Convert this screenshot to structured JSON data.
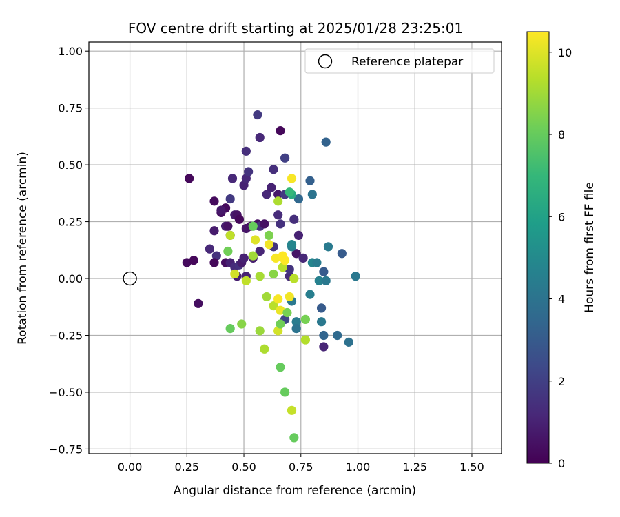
{
  "chart_data": {
    "type": "scatter",
    "title": "FOV centre drift starting at 2025/01/28 23:25:01",
    "xlabel": "Angular distance from reference (arcmin)",
    "ylabel": "Rotation from reference (arcmin)",
    "xlim": [
      -0.18,
      1.63
    ],
    "ylim": [
      -0.77,
      1.04
    ],
    "xticks": [
      0.0,
      0.25,
      0.5,
      0.75,
      1.0,
      1.25,
      1.5
    ],
    "xtick_labels": [
      "0.00",
      "0.25",
      "0.50",
      "0.75",
      "1.00",
      "1.25",
      "1.50"
    ],
    "yticks": [
      -0.75,
      -0.5,
      -0.25,
      0.0,
      0.25,
      0.5,
      0.75,
      1.0
    ],
    "ytick_labels": [
      "−0.75",
      "−0.50",
      "−0.25",
      "0.00",
      "0.25",
      "0.50",
      "0.75",
      "1.00"
    ],
    "grid": true,
    "legend": {
      "position": "top-right",
      "entries": [
        "Reference platepar"
      ]
    },
    "reference_point": {
      "x": 0.0,
      "y": 0.0,
      "marker": "open-circle"
    },
    "colorbar": {
      "label": "Hours from first FF file",
      "range": [
        0,
        10.5
      ],
      "ticks": [
        0,
        2,
        4,
        6,
        8,
        10
      ],
      "tick_labels": [
        "0",
        "2",
        "4",
        "6",
        "8",
        "10"
      ],
      "colormap": "viridis",
      "colors": [
        "#440154",
        "#482878",
        "#3e4989",
        "#31688e",
        "#26828e",
        "#1f9e89",
        "#35b779",
        "#6ece58",
        "#b5de2b",
        "#fde725"
      ]
    },
    "points": [
      {
        "x": 0.26,
        "y": 0.44,
        "h": 0.2
      },
      {
        "x": 0.25,
        "y": 0.07,
        "h": 0.3
      },
      {
        "x": 0.28,
        "y": 0.08,
        "h": 0.2
      },
      {
        "x": 0.3,
        "y": -0.11,
        "h": 0.4
      },
      {
        "x": 0.35,
        "y": 0.13,
        "h": 1.2
      },
      {
        "x": 0.37,
        "y": 0.21,
        "h": 0.8
      },
      {
        "x": 0.37,
        "y": 0.34,
        "h": 0.3
      },
      {
        "x": 0.38,
        "y": 0.1,
        "h": 1.5
      },
      {
        "x": 0.37,
        "y": 0.07,
        "h": 0.2
      },
      {
        "x": 0.4,
        "y": 0.29,
        "h": 0.4
      },
      {
        "x": 0.42,
        "y": 0.31,
        "h": 0.3
      },
      {
        "x": 0.42,
        "y": 0.23,
        "h": 0.9
      },
      {
        "x": 0.43,
        "y": 0.23,
        "h": 0.5
      },
      {
        "x": 0.42,
        "y": 0.07,
        "h": 0.4
      },
      {
        "x": 0.44,
        "y": 0.35,
        "h": 1.8
      },
      {
        "x": 0.45,
        "y": 0.44,
        "h": 1.2
      },
      {
        "x": 0.44,
        "y": 0.07,
        "h": 1.0
      },
      {
        "x": 0.44,
        "y": 0.19,
        "h": 0.6
      },
      {
        "x": 0.46,
        "y": 0.28,
        "h": 0.8
      },
      {
        "x": 0.47,
        "y": 0.28,
        "h": 0.5
      },
      {
        "x": 0.46,
        "y": 0.05,
        "h": 1.3
      },
      {
        "x": 0.47,
        "y": 0.01,
        "h": 0.9
      },
      {
        "x": 0.48,
        "y": 0.26,
        "h": 0.2
      },
      {
        "x": 0.48,
        "y": 0.06,
        "h": 1.5
      },
      {
        "x": 0.49,
        "y": 0.07,
        "h": 0.8
      },
      {
        "x": 0.5,
        "y": 0.41,
        "h": 1.0
      },
      {
        "x": 0.5,
        "y": 0.09,
        "h": 1.0
      },
      {
        "x": 0.51,
        "y": 0.56,
        "h": 1.4
      },
      {
        "x": 0.51,
        "y": 0.44,
        "h": 1.2
      },
      {
        "x": 0.51,
        "y": 0.01,
        "h": 1.0
      },
      {
        "x": 0.51,
        "y": 0.22,
        "h": 0.6
      },
      {
        "x": 0.52,
        "y": 0.47,
        "h": 1.6
      },
      {
        "x": 0.53,
        "y": 0.23,
        "h": 0.5
      },
      {
        "x": 0.54,
        "y": 0.09,
        "h": 0.9
      },
      {
        "x": 0.56,
        "y": 0.72,
        "h": 1.8
      },
      {
        "x": 0.57,
        "y": 0.62,
        "h": 1.2
      },
      {
        "x": 0.56,
        "y": 0.24,
        "h": 0.4
      },
      {
        "x": 0.57,
        "y": 0.23,
        "h": 1.4
      },
      {
        "x": 0.57,
        "y": 0.12,
        "h": 1.1
      },
      {
        "x": 0.59,
        "y": 0.24,
        "h": 0.5
      },
      {
        "x": 0.6,
        "y": 0.37,
        "h": 1.2
      },
      {
        "x": 0.62,
        "y": 0.4,
        "h": 1.0
      },
      {
        "x": 0.63,
        "y": 0.48,
        "h": 1.4
      },
      {
        "x": 0.63,
        "y": 0.14,
        "h": 1.6
      },
      {
        "x": 0.65,
        "y": 0.37,
        "h": 0.7
      },
      {
        "x": 0.66,
        "y": 0.65,
        "h": 0.2
      },
      {
        "x": 0.65,
        "y": 0.28,
        "h": 1.3
      },
      {
        "x": 0.66,
        "y": 0.24,
        "h": 1.5
      },
      {
        "x": 0.68,
        "y": 0.53,
        "h": 2.0
      },
      {
        "x": 0.68,
        "y": 0.37,
        "h": 1.8
      },
      {
        "x": 0.7,
        "y": 0.01,
        "h": 1.3
      },
      {
        "x": 0.7,
        "y": 0.04,
        "h": 1.6
      },
      {
        "x": 0.72,
        "y": 0.26,
        "h": 1.4
      },
      {
        "x": 0.73,
        "y": 0.11,
        "h": 0.6
      },
      {
        "x": 0.74,
        "y": 0.19,
        "h": 1.0
      },
      {
        "x": 0.76,
        "y": 0.09,
        "h": 1.2
      },
      {
        "x": 0.85,
        "y": -0.3,
        "h": 1.1
      },
      {
        "x": 0.4,
        "y": 0.3,
        "h": 0.7
      },
      {
        "x": 0.68,
        "y": -0.18,
        "h": 2.2
      },
      {
        "x": 0.74,
        "y": 0.35,
        "h": 3.5
      },
      {
        "x": 0.71,
        "y": 0.14,
        "h": 4.5
      },
      {
        "x": 0.71,
        "y": 0.15,
        "h": 4.8
      },
      {
        "x": 0.71,
        "y": -0.1,
        "h": 4.2
      },
      {
        "x": 0.73,
        "y": -0.19,
        "h": 4.4
      },
      {
        "x": 0.73,
        "y": -0.22,
        "h": 4.0
      },
      {
        "x": 0.79,
        "y": 0.43,
        "h": 3.2
      },
      {
        "x": 0.8,
        "y": 0.37,
        "h": 4.0
      },
      {
        "x": 0.79,
        "y": -0.07,
        "h": 4.5
      },
      {
        "x": 0.8,
        "y": 0.07,
        "h": 4.8
      },
      {
        "x": 0.82,
        "y": 0.07,
        "h": 4.4
      },
      {
        "x": 0.83,
        "y": -0.01,
        "h": 4.6
      },
      {
        "x": 0.84,
        "y": -0.13,
        "h": 3.0
      },
      {
        "x": 0.84,
        "y": -0.19,
        "h": 4.2
      },
      {
        "x": 0.85,
        "y": 0.03,
        "h": 3.0
      },
      {
        "x": 0.85,
        "y": -0.25,
        "h": 3.4
      },
      {
        "x": 0.86,
        "y": 0.6,
        "h": 3.3
      },
      {
        "x": 0.86,
        "y": -0.01,
        "h": 4.2
      },
      {
        "x": 0.87,
        "y": 0.14,
        "h": 4.3
      },
      {
        "x": 0.91,
        "y": -0.25,
        "h": 3.6
      },
      {
        "x": 0.93,
        "y": 0.11,
        "h": 3.0
      },
      {
        "x": 0.96,
        "y": -0.28,
        "h": 3.9
      },
      {
        "x": 0.99,
        "y": 0.01,
        "h": 4.2
      },
      {
        "x": 0.71,
        "y": 0.37,
        "h": 6.4
      },
      {
        "x": 0.7,
        "y": 0.38,
        "h": 7.0
      },
      {
        "x": 0.43,
        "y": 0.12,
        "h": 8.2
      },
      {
        "x": 0.44,
        "y": 0.19,
        "h": 9.5
      },
      {
        "x": 0.44,
        "y": -0.22,
        "h": 8.0
      },
      {
        "x": 0.46,
        "y": 0.02,
        "h": 9.8
      },
      {
        "x": 0.49,
        "y": -0.2,
        "h": 8.6
      },
      {
        "x": 0.51,
        "y": -0.01,
        "h": 9.5
      },
      {
        "x": 0.54,
        "y": 0.1,
        "h": 9.0
      },
      {
        "x": 0.54,
        "y": 0.23,
        "h": 8.0
      },
      {
        "x": 0.55,
        "y": 0.17,
        "h": 10.0
      },
      {
        "x": 0.57,
        "y": 0.01,
        "h": 9.1
      },
      {
        "x": 0.57,
        "y": -0.23,
        "h": 8.9
      },
      {
        "x": 0.59,
        "y": -0.31,
        "h": 9.2
      },
      {
        "x": 0.6,
        "y": -0.08,
        "h": 9.0
      },
      {
        "x": 0.61,
        "y": 0.19,
        "h": 8.4
      },
      {
        "x": 0.61,
        "y": 0.15,
        "h": 10.3
      },
      {
        "x": 0.63,
        "y": 0.02,
        "h": 8.6
      },
      {
        "x": 0.63,
        "y": -0.12,
        "h": 9.4
      },
      {
        "x": 0.64,
        "y": 0.09,
        "h": 10.4
      },
      {
        "x": 0.65,
        "y": 0.34,
        "h": 9.2
      },
      {
        "x": 0.65,
        "y": -0.09,
        "h": 10.4
      },
      {
        "x": 0.65,
        "y": -0.23,
        "h": 9.8
      },
      {
        "x": 0.66,
        "y": -0.14,
        "h": 10.2
      },
      {
        "x": 0.66,
        "y": -0.2,
        "h": 8.2
      },
      {
        "x": 0.66,
        "y": -0.39,
        "h": 8.0
      },
      {
        "x": 0.67,
        "y": 0.05,
        "h": 9.4
      },
      {
        "x": 0.67,
        "y": 0.1,
        "h": 10.5
      },
      {
        "x": 0.68,
        "y": 0.08,
        "h": 10.5
      },
      {
        "x": 0.68,
        "y": -0.5,
        "h": 8.0
      },
      {
        "x": 0.69,
        "y": -0.15,
        "h": 8.3
      },
      {
        "x": 0.7,
        "y": -0.08,
        "h": 10.3
      },
      {
        "x": 0.71,
        "y": 0.44,
        "h": 10.4
      },
      {
        "x": 0.71,
        "y": -0.58,
        "h": 9.6
      },
      {
        "x": 0.72,
        "y": -0.7,
        "h": 8.0
      },
      {
        "x": 0.72,
        "y": 0.0,
        "h": 9.4
      },
      {
        "x": 0.77,
        "y": -0.18,
        "h": 8.3
      },
      {
        "x": 0.77,
        "y": -0.27,
        "h": 9.3
      }
    ]
  }
}
